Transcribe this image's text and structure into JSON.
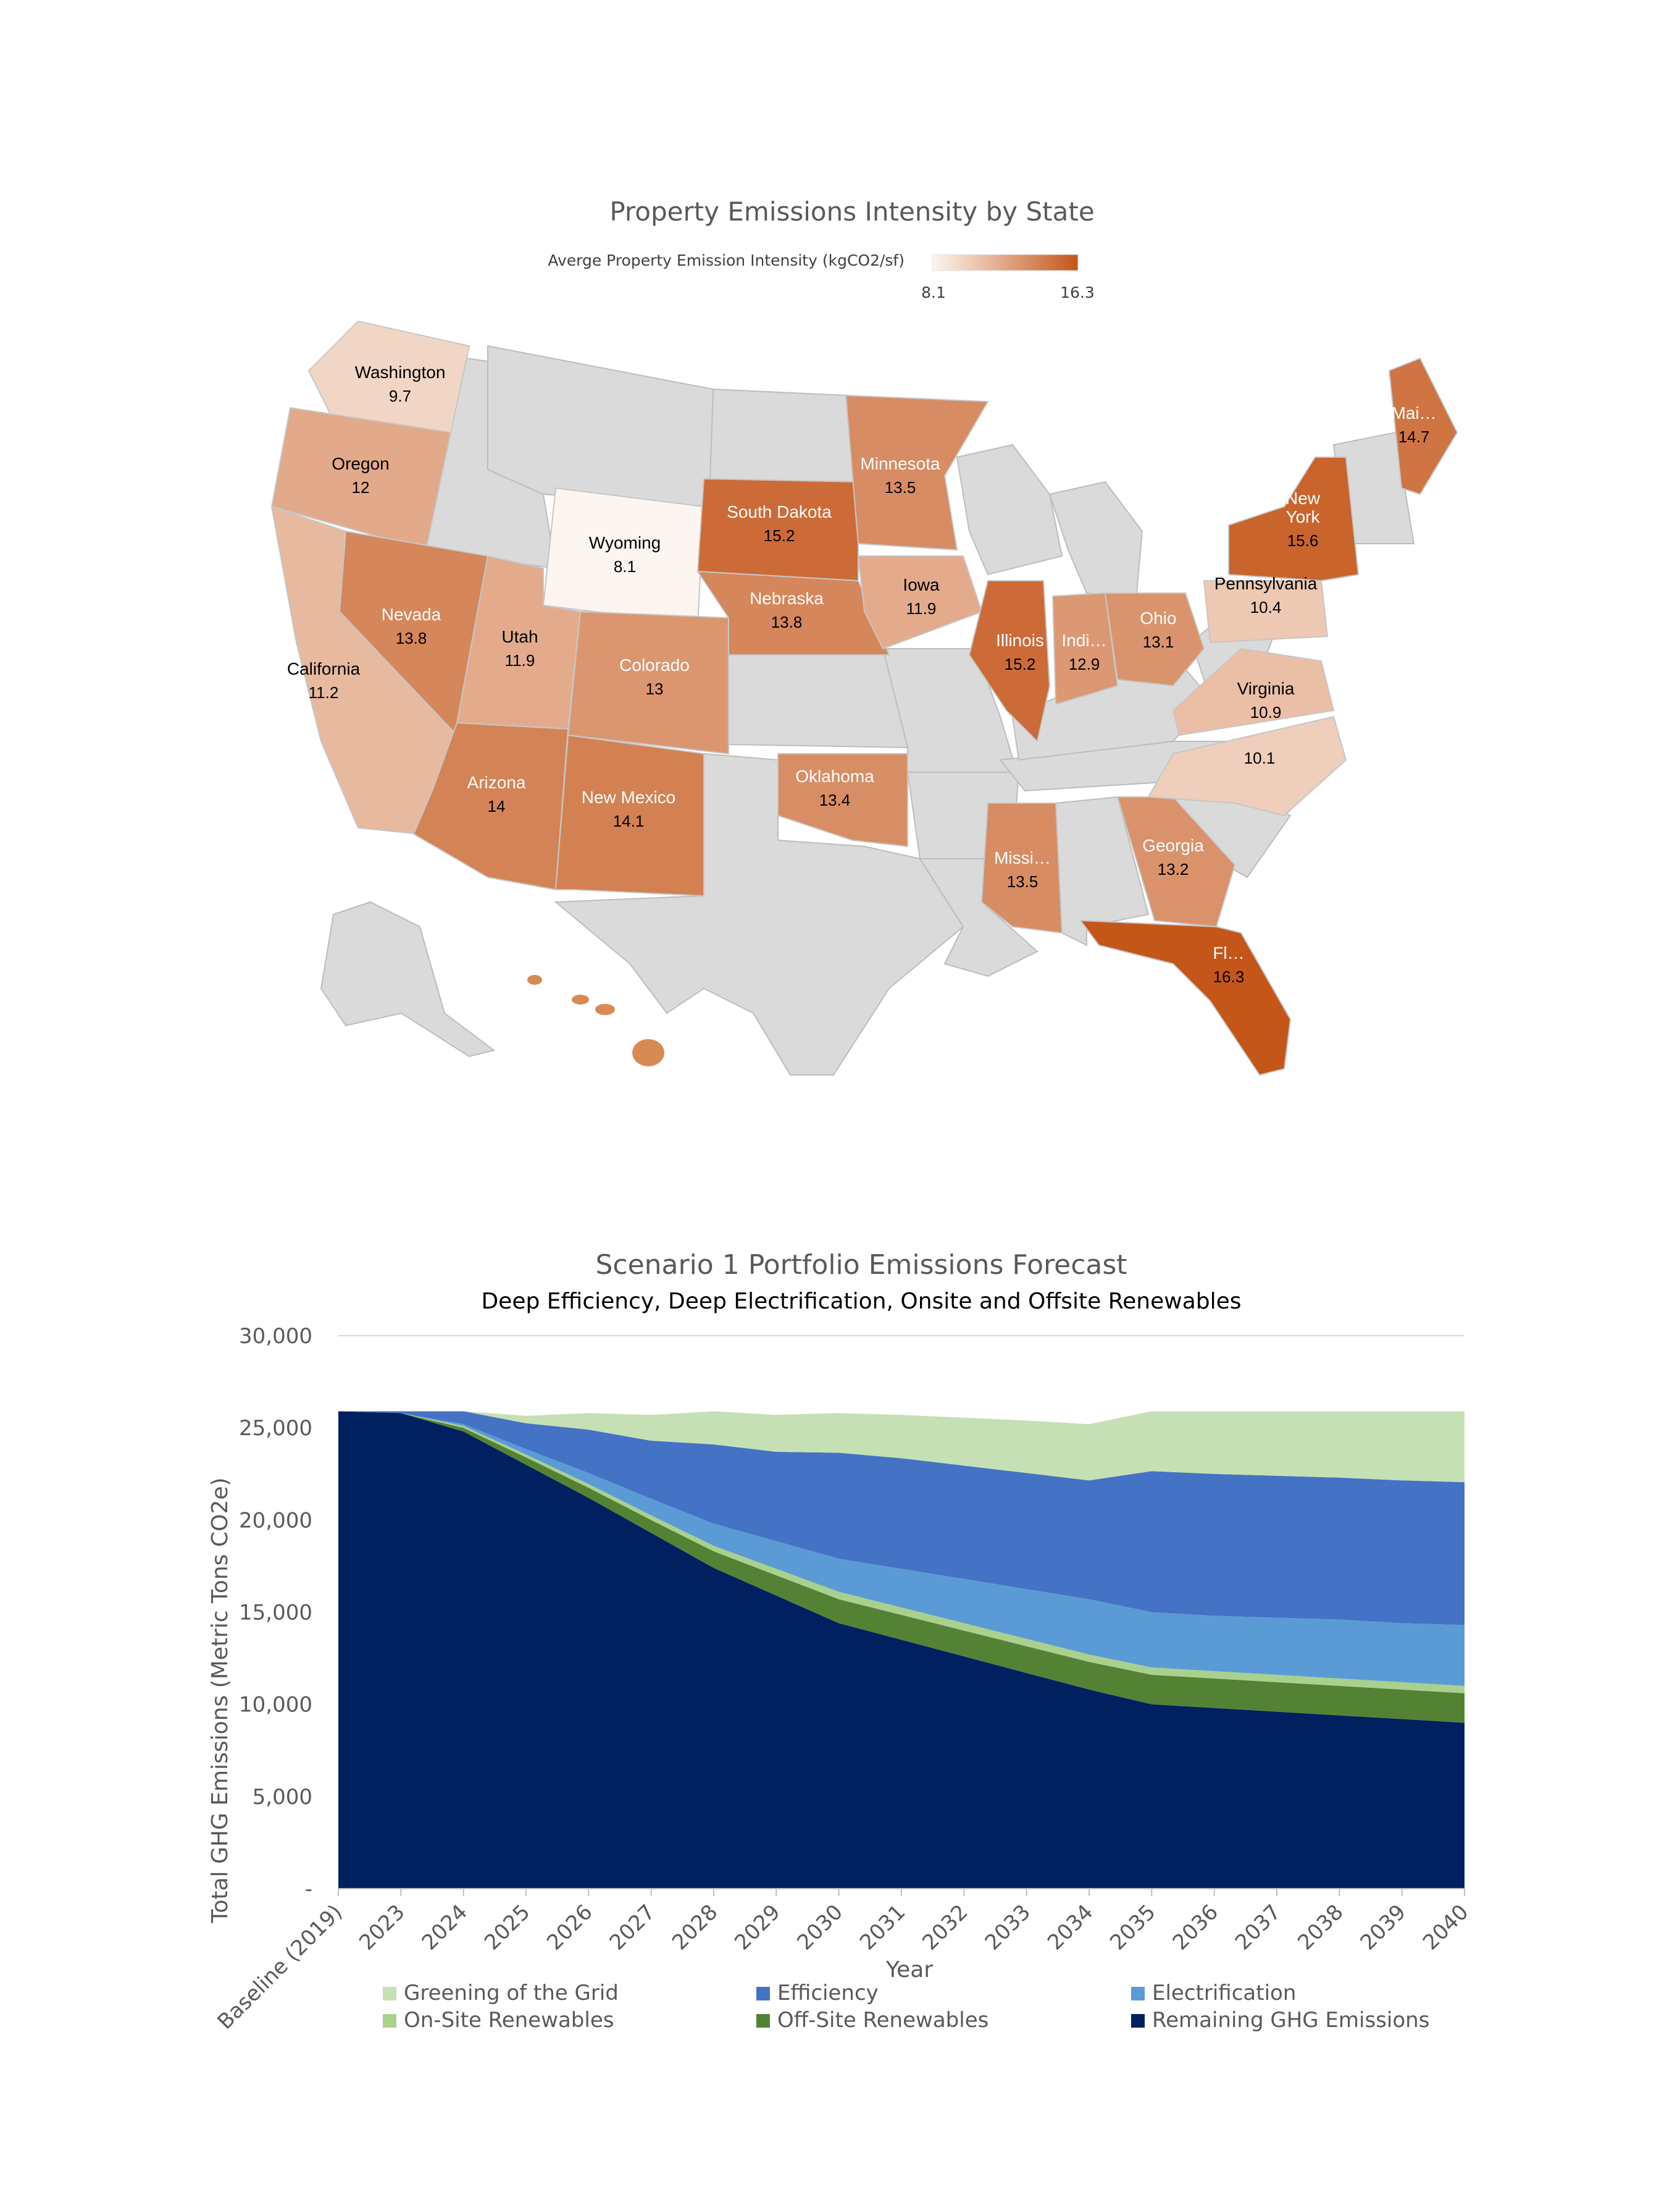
{
  "map": {
    "title": "Property Emissions Intensity by State",
    "legend": {
      "label": "Averge Property Emission Intensity (kgCO2/sf)",
      "min_label": "8.1",
      "max_label": "16.3",
      "min": 8.1,
      "max": 16.3,
      "color_low": "#FDF5EF",
      "color_high": "#C4561A"
    },
    "states": [
      {
        "name": "Washington",
        "label": "Washington",
        "value": 9.7,
        "value_label": "9.7"
      },
      {
        "name": "Oregon",
        "label": "Oregon",
        "value": 12,
        "value_label": "12"
      },
      {
        "name": "California",
        "label": "California",
        "value": 11.2,
        "value_label": "11.2"
      },
      {
        "name": "Nevada",
        "label": "Nevada",
        "value": 13.8,
        "value_label": "13.8"
      },
      {
        "name": "Utah",
        "label": "Utah",
        "value": 11.9,
        "value_label": "11.9"
      },
      {
        "name": "Arizona",
        "label": "Arizona",
        "value": 14,
        "value_label": "14"
      },
      {
        "name": "Wyoming",
        "label": "Wyoming",
        "value": 8.1,
        "value_label": "8.1"
      },
      {
        "name": "Colorado",
        "label": "Colorado",
        "value": 13,
        "value_label": "13"
      },
      {
        "name": "New Mexico",
        "label": "New Mexico",
        "value": 14.1,
        "value_label": "14.1"
      },
      {
        "name": "South Dakota",
        "label": "South Dakota",
        "value": 15.2,
        "value_label": "15.2"
      },
      {
        "name": "Nebraska",
        "label": "Nebraska",
        "value": 13.8,
        "value_label": "13.8"
      },
      {
        "name": "Oklahoma",
        "label": "Oklahoma",
        "value": 13.4,
        "value_label": "13.4"
      },
      {
        "name": "Minnesota",
        "label": "Minnesota",
        "value": 13.5,
        "value_label": "13.5"
      },
      {
        "name": "Iowa",
        "label": "Iowa",
        "value": 11.9,
        "value_label": "11.9"
      },
      {
        "name": "Illinois",
        "label": "Illinois",
        "value": 15.2,
        "value_label": "15.2"
      },
      {
        "name": "Indiana",
        "label": "Indi…",
        "value": 12.9,
        "value_label": "12.9"
      },
      {
        "name": "Ohio",
        "label": "Ohio",
        "value": 13.1,
        "value_label": "13.1"
      },
      {
        "name": "Mississippi",
        "label": "Missi…",
        "value": 13.5,
        "value_label": "13.5"
      },
      {
        "name": "Georgia",
        "label": "Georgia",
        "value": 13.2,
        "value_label": "13.2"
      },
      {
        "name": "Florida",
        "label": "Fl…",
        "value": 16.3,
        "value_label": "16.3"
      },
      {
        "name": "Pennsylvania",
        "label": "Pennsylvania",
        "value": 10.4,
        "value_label": "10.4"
      },
      {
        "name": "Virginia",
        "label": "Virginia",
        "value": 10.9,
        "value_label": "10.9"
      },
      {
        "name": "North Carolina",
        "label": "",
        "value": 10.1,
        "value_label": "10.1"
      },
      {
        "name": "New York",
        "label": "New York",
        "value": 15.6,
        "value_label": "15.6"
      },
      {
        "name": "Maine",
        "label": "Mai…",
        "value": 14.7,
        "value_label": "14.7"
      }
    ]
  },
  "chart_data": {
    "type": "area",
    "stacked": true,
    "title": "Scenario 1 Portfolio Emissions Forecast",
    "subtitle": "Deep Efficiency, Deep Electrification, Onsite and Offsite Renewables",
    "xlabel": "Year",
    "ylabel": "Total GHG Emissions (Metric Tons CO2e)",
    "ylim": [
      0,
      30000
    ],
    "yticks": [
      0,
      5000,
      10000,
      15000,
      20000,
      25000,
      30000
    ],
    "ytick_labels": [
      "-",
      "5,000",
      "10,000",
      "15,000",
      "20,000",
      "25,000",
      "30,000"
    ],
    "categories": [
      "Baseline (2019)",
      "2023",
      "2024",
      "2025",
      "2026",
      "2027",
      "2028",
      "2029",
      "2030",
      "2031",
      "2032",
      "2033",
      "2034",
      "2035",
      "2036",
      "2037",
      "2038",
      "2039",
      "2040"
    ],
    "series": [
      {
        "name": "Remaining GHG Emissions",
        "color": "#002060",
        "values": [
          25900,
          25800,
          24800,
          23000,
          21200,
          19300,
          17400,
          15900,
          14400,
          13500,
          12600,
          11700,
          10800,
          10000,
          9800,
          9600,
          9400,
          9200,
          9000
        ]
      },
      {
        "name": "Off-Site Renewables",
        "color": "#548235",
        "values": [
          0,
          0,
          200,
          400,
          550,
          700,
          900,
          1100,
          1300,
          1350,
          1400,
          1450,
          1500,
          1600,
          1600,
          1600,
          1600,
          1600,
          1600
        ]
      },
      {
        "name": "On-Site Renewables",
        "color": "#A9D18E",
        "values": [
          0,
          0,
          100,
          150,
          200,
          250,
          300,
          350,
          400,
          400,
          400,
          400,
          400,
          400,
          400,
          400,
          400,
          400,
          400
        ]
      },
      {
        "name": "Electrification",
        "color": "#5B9BD5",
        "values": [
          0,
          0,
          100,
          300,
          600,
          900,
          1200,
          1500,
          1800,
          2100,
          2400,
          2700,
          3000,
          3000,
          3000,
          3100,
          3200,
          3200,
          3300
        ]
      },
      {
        "name": "Efficiency",
        "color": "#4472C4",
        "values": [
          0,
          100,
          700,
          1400,
          2350,
          3150,
          4300,
          4850,
          5750,
          6000,
          6150,
          6300,
          6450,
          7650,
          7700,
          7700,
          7700,
          7750,
          7750
        ]
      },
      {
        "name": "Greening of the Grid",
        "color": "#C5E0B4",
        "values": [
          0,
          0,
          0,
          400,
          900,
          1400,
          1800,
          2000,
          2150,
          2350,
          2600,
          2850,
          3050,
          3250,
          3400,
          3500,
          3600,
          3750,
          3850
        ]
      }
    ],
    "legend_order": [
      "Greening of the Grid",
      "Efficiency",
      "Electrification",
      "On-Site Renewables",
      "Off-Site Renewables",
      "Remaining GHG Emissions"
    ],
    "legend_position": "bottom"
  }
}
